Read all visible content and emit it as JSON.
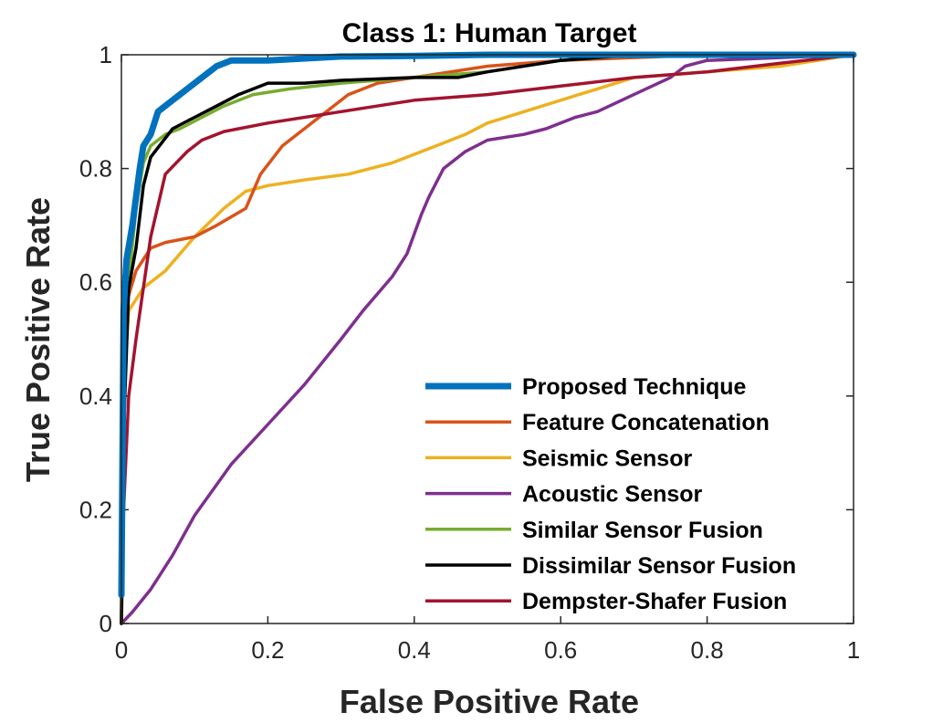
{
  "chart_data": {
    "type": "line",
    "title": "Class 1: Human Target",
    "xlabel": "False Positive Rate",
    "ylabel": "True Positive Rate",
    "xlim": [
      0,
      1
    ],
    "ylim": [
      0,
      1
    ],
    "xticks": [
      0,
      0.2,
      0.4,
      0.6,
      0.8,
      1
    ],
    "xtick_labels": [
      "0",
      "0.2",
      "0.4",
      "0.6",
      "0.8",
      "1"
    ],
    "yticks": [
      0,
      0.2,
      0.4,
      0.6,
      0.8,
      1
    ],
    "ytick_labels": [
      "0",
      "0.2",
      "0.4",
      "0.6",
      "0.8",
      "1"
    ],
    "grid": false,
    "legend_position": "bottom-right",
    "series": [
      {
        "name": "Proposed Technique",
        "color": "#0072BD",
        "width": 7,
        "points": [
          [
            0,
            0.05
          ],
          [
            0.003,
            0.55
          ],
          [
            0.007,
            0.64
          ],
          [
            0.015,
            0.7
          ],
          [
            0.025,
            0.8
          ],
          [
            0.03,
            0.84
          ],
          [
            0.04,
            0.86
          ],
          [
            0.05,
            0.9
          ],
          [
            0.07,
            0.92
          ],
          [
            0.1,
            0.95
          ],
          [
            0.13,
            0.98
          ],
          [
            0.15,
            0.99
          ],
          [
            0.2,
            0.99
          ],
          [
            0.3,
            0.997
          ],
          [
            0.4,
            0.998
          ],
          [
            0.5,
            1
          ],
          [
            1,
            1
          ]
        ]
      },
      {
        "name": "Feature Concatenation",
        "color": "#D95319",
        "width": 3.5,
        "points": [
          [
            0,
            0
          ],
          [
            0.003,
            0.42
          ],
          [
            0.006,
            0.56
          ],
          [
            0.02,
            0.62
          ],
          [
            0.04,
            0.66
          ],
          [
            0.06,
            0.67
          ],
          [
            0.1,
            0.68
          ],
          [
            0.13,
            0.7
          ],
          [
            0.17,
            0.73
          ],
          [
            0.19,
            0.79
          ],
          [
            0.22,
            0.84
          ],
          [
            0.26,
            0.88
          ],
          [
            0.31,
            0.93
          ],
          [
            0.35,
            0.95
          ],
          [
            0.4,
            0.96
          ],
          [
            0.5,
            0.98
          ],
          [
            0.6,
            0.99
          ],
          [
            0.7,
            0.995
          ],
          [
            0.8,
            1
          ],
          [
            1,
            1
          ]
        ]
      },
      {
        "name": "Seismic Sensor",
        "color": "#EDB120",
        "width": 3.5,
        "points": [
          [
            0,
            0
          ],
          [
            0.002,
            0.4
          ],
          [
            0.01,
            0.55
          ],
          [
            0.03,
            0.59
          ],
          [
            0.06,
            0.62
          ],
          [
            0.1,
            0.68
          ],
          [
            0.14,
            0.73
          ],
          [
            0.17,
            0.76
          ],
          [
            0.2,
            0.77
          ],
          [
            0.25,
            0.78
          ],
          [
            0.31,
            0.79
          ],
          [
            0.37,
            0.81
          ],
          [
            0.43,
            0.84
          ],
          [
            0.47,
            0.86
          ],
          [
            0.5,
            0.88
          ],
          [
            0.55,
            0.9
          ],
          [
            0.6,
            0.92
          ],
          [
            0.65,
            0.94
          ],
          [
            0.7,
            0.96
          ],
          [
            0.8,
            0.97
          ],
          [
            0.9,
            0.98
          ],
          [
            1,
            1
          ]
        ]
      },
      {
        "name": "Acoustic Sensor",
        "color": "#7E2F8E",
        "width": 3.5,
        "points": [
          [
            0,
            0
          ],
          [
            0.015,
            0.02
          ],
          [
            0.04,
            0.06
          ],
          [
            0.07,
            0.12
          ],
          [
            0.1,
            0.19
          ],
          [
            0.15,
            0.28
          ],
          [
            0.2,
            0.35
          ],
          [
            0.25,
            0.42
          ],
          [
            0.3,
            0.5
          ],
          [
            0.33,
            0.55
          ],
          [
            0.37,
            0.61
          ],
          [
            0.39,
            0.65
          ],
          [
            0.41,
            0.72
          ],
          [
            0.42,
            0.75
          ],
          [
            0.44,
            0.8
          ],
          [
            0.47,
            0.83
          ],
          [
            0.5,
            0.85
          ],
          [
            0.55,
            0.86
          ],
          [
            0.58,
            0.87
          ],
          [
            0.62,
            0.89
          ],
          [
            0.65,
            0.9
          ],
          [
            0.7,
            0.93
          ],
          [
            0.75,
            0.96
          ],
          [
            0.77,
            0.98
          ],
          [
            0.8,
            0.99
          ],
          [
            0.9,
            0.995
          ],
          [
            1,
            1
          ]
        ]
      },
      {
        "name": "Similar Sensor Fusion",
        "color": "#77AC30",
        "width": 3.5,
        "points": [
          [
            0,
            0
          ],
          [
            0.002,
            0.35
          ],
          [
            0.01,
            0.6
          ],
          [
            0.02,
            0.73
          ],
          [
            0.03,
            0.81
          ],
          [
            0.04,
            0.84
          ],
          [
            0.06,
            0.86
          ],
          [
            0.08,
            0.87
          ],
          [
            0.11,
            0.89
          ],
          [
            0.14,
            0.91
          ],
          [
            0.18,
            0.93
          ],
          [
            0.23,
            0.94
          ],
          [
            0.3,
            0.95
          ],
          [
            0.4,
            0.96
          ],
          [
            0.5,
            0.97
          ],
          [
            0.6,
            0.99
          ],
          [
            0.7,
            1
          ],
          [
            1,
            1
          ]
        ]
      },
      {
        "name": "Dissimilar Sensor Fusion",
        "color": "#000000",
        "width": 3.5,
        "points": [
          [
            0,
            0
          ],
          [
            0.002,
            0.3
          ],
          [
            0.01,
            0.59
          ],
          [
            0.02,
            0.66
          ],
          [
            0.03,
            0.77
          ],
          [
            0.04,
            0.82
          ],
          [
            0.07,
            0.87
          ],
          [
            0.1,
            0.89
          ],
          [
            0.13,
            0.91
          ],
          [
            0.16,
            0.93
          ],
          [
            0.2,
            0.95
          ],
          [
            0.25,
            0.95
          ],
          [
            0.3,
            0.955
          ],
          [
            0.4,
            0.96
          ],
          [
            0.46,
            0.96
          ],
          [
            0.5,
            0.97
          ],
          [
            0.6,
            0.99
          ],
          [
            0.7,
            1
          ],
          [
            1,
            1
          ]
        ]
      },
      {
        "name": "Dempster-Shafer Fusion",
        "color": "#A2142F",
        "width": 3.5,
        "points": [
          [
            0,
            0
          ],
          [
            0.003,
            0.2
          ],
          [
            0.01,
            0.4
          ],
          [
            0.02,
            0.5
          ],
          [
            0.04,
            0.68
          ],
          [
            0.06,
            0.79
          ],
          [
            0.09,
            0.83
          ],
          [
            0.11,
            0.85
          ],
          [
            0.14,
            0.865
          ],
          [
            0.2,
            0.88
          ],
          [
            0.3,
            0.9
          ],
          [
            0.4,
            0.92
          ],
          [
            0.5,
            0.93
          ],
          [
            0.6,
            0.945
          ],
          [
            0.7,
            0.96
          ],
          [
            0.8,
            0.97
          ],
          [
            0.9,
            0.985
          ],
          [
            1,
            1
          ]
        ]
      }
    ]
  }
}
